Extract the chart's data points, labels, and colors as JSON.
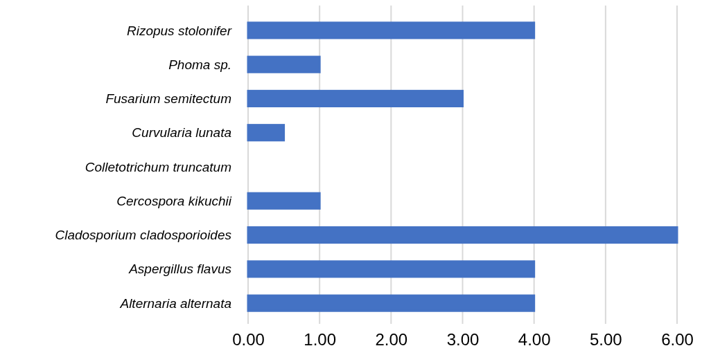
{
  "chart_data": {
    "type": "bar",
    "orientation": "horizontal",
    "categories": [
      "Rizopus stolonifer",
      "Phoma sp.",
      "Fusarium semitectum",
      "Curvularia lunata",
      "Colletotrichum truncatum",
      "Cercospora kikuchii",
      "Cladosporium cladosporioides",
      "Aspergillus flavus",
      "Alternaria alternata"
    ],
    "values": [
      4,
      1,
      3,
      0.5,
      0,
      1,
      6,
      4,
      4
    ],
    "colors": [
      "#4472c4",
      "#4472c4",
      "#4472c4",
      "#4472c4",
      "#c00000",
      "#4472c4",
      "#4472c4",
      "#4472c4",
      "#4472c4"
    ],
    "xlim": [
      0,
      6
    ],
    "xticks": [
      {
        "value": 0,
        "label": "0.00"
      },
      {
        "value": 1,
        "label": "1.00"
      },
      {
        "value": 2,
        "label": "2.00"
      },
      {
        "value": 3,
        "label": "3.00"
      },
      {
        "value": 4,
        "label": "4.00"
      },
      {
        "value": 5,
        "label": "5.00"
      },
      {
        "value": 6,
        "label": "6.00"
      }
    ],
    "grid": "x"
  }
}
